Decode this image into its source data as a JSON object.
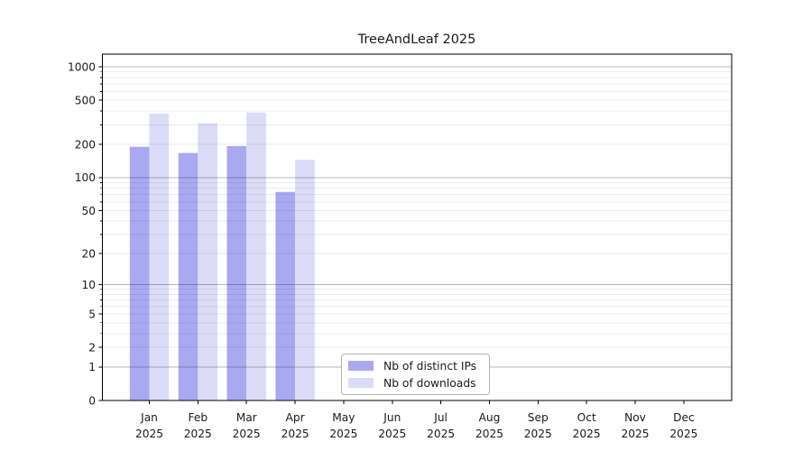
{
  "chart": {
    "background": "#ffffff",
    "text_color": "#1a1a1a",
    "axis_color": "#000000",
    "grid_major_color": "rgba(0,0,0,0.28)",
    "grid_minor_color": "rgba(0,0,0,0.075)",
    "legend_border_color": "#b3b3b3"
  },
  "chart_data": {
    "type": "bar",
    "title": "TreeAndLeaf 2025",
    "categories": [
      "Jan",
      "Feb",
      "Mar",
      "Apr",
      "May",
      "Jun",
      "Jul",
      "Aug",
      "Sep",
      "Oct",
      "Nov",
      "Dec"
    ],
    "year_label": "2025",
    "series": [
      {
        "name": "Nb of distinct IPs",
        "color": "#a9a9f1",
        "values": [
          190,
          167,
          193,
          74,
          0,
          0,
          0,
          0,
          0,
          0,
          0,
          0
        ]
      },
      {
        "name": "Nb of downloads",
        "color": "#dcdcf8",
        "values": [
          380,
          310,
          387,
          145,
          0,
          0,
          0,
          0,
          0,
          0,
          0,
          0
        ]
      }
    ],
    "yscale": "log1p",
    "yticks": [
      0,
      1,
      2,
      5,
      10,
      20,
      50,
      100,
      200,
      500,
      1000
    ],
    "ylim": [
      0,
      1300
    ],
    "grid": true,
    "legend_position": "lower center inside",
    "xlabel": "",
    "ylabel": ""
  }
}
